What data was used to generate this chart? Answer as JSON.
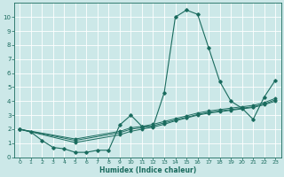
{
  "title": "",
  "xlabel": "Humidex (Indice chaleur)",
  "bg_color": "#cce8e8",
  "line_color": "#1a6b5e",
  "grid_color": "#ffffff",
  "xlim": [
    -0.5,
    23.5
  ],
  "ylim": [
    0,
    11
  ],
  "xticks": [
    0,
    1,
    2,
    3,
    4,
    5,
    6,
    7,
    8,
    9,
    10,
    11,
    12,
    13,
    14,
    15,
    16,
    17,
    18,
    19,
    20,
    21,
    22,
    23
  ],
  "yticks": [
    0,
    1,
    2,
    3,
    4,
    5,
    6,
    7,
    8,
    9,
    10
  ],
  "line1_x": [
    0,
    1,
    2,
    3,
    4,
    5,
    6,
    7,
    8,
    9,
    10,
    11,
    12,
    13,
    14,
    15,
    16,
    17,
    18,
    19,
    20,
    21,
    22,
    23
  ],
  "line1_y": [
    2.0,
    1.8,
    1.2,
    0.7,
    0.6,
    0.35,
    0.35,
    0.5,
    0.5,
    2.3,
    3.0,
    2.2,
    2.2,
    4.6,
    10.0,
    10.5,
    10.2,
    7.8,
    5.4,
    4.0,
    3.5,
    2.7,
    4.3,
    5.5
  ],
  "line2_x": [
    0,
    5,
    9,
    10,
    11,
    12,
    13,
    14,
    15,
    16,
    17,
    18,
    19,
    20,
    21,
    22,
    23
  ],
  "line2_y": [
    2.0,
    1.05,
    1.6,
    1.85,
    2.0,
    2.15,
    2.35,
    2.6,
    2.8,
    3.0,
    3.15,
    3.25,
    3.35,
    3.45,
    3.55,
    3.75,
    4.0
  ],
  "line3_x": [
    0,
    5,
    9,
    10,
    11,
    12,
    13,
    14,
    15,
    16,
    17,
    18,
    19,
    20,
    21,
    22,
    23
  ],
  "line3_y": [
    2.0,
    1.2,
    1.75,
    2.0,
    2.1,
    2.25,
    2.45,
    2.65,
    2.85,
    3.05,
    3.2,
    3.3,
    3.4,
    3.5,
    3.6,
    3.8,
    4.1
  ],
  "line4_x": [
    0,
    5,
    9,
    10,
    11,
    12,
    13,
    14,
    15,
    16,
    17,
    18,
    19,
    20,
    21,
    22,
    23
  ],
  "line4_y": [
    2.0,
    1.3,
    1.85,
    2.1,
    2.2,
    2.35,
    2.55,
    2.75,
    2.95,
    3.15,
    3.3,
    3.4,
    3.5,
    3.6,
    3.7,
    3.9,
    4.2
  ]
}
